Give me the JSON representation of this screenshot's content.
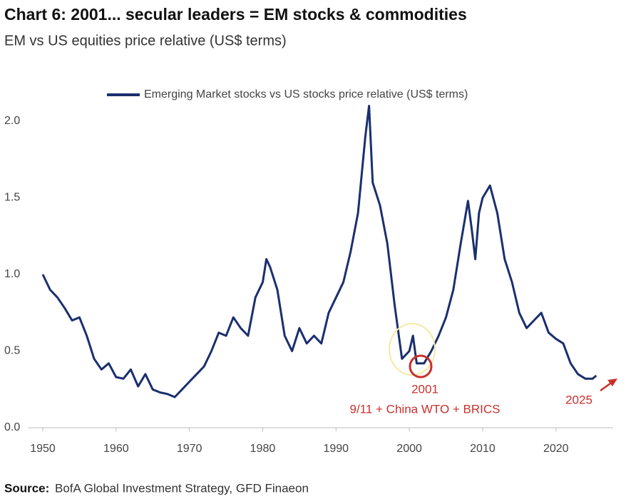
{
  "chart_data": {
    "type": "line",
    "title": "Chart 6: 2001... secular leaders = EM stocks & commodities",
    "subtitle": "EM vs US equities price relative (US$ terms)",
    "source_label": "Source:",
    "source_text": "BofA Global Investment Strategy, GFD Finaeon",
    "legend": "top",
    "annotations": [
      "2001",
      "9/11 + China WTO + BRICS",
      "2025"
    ],
    "x": [
      1950,
      1951,
      1952,
      1953,
      1954,
      1955,
      1956,
      1957,
      1958,
      1959,
      1960,
      1961,
      1962,
      1963,
      1964,
      1965,
      1966,
      1967,
      1968,
      1969,
      1970,
      1971,
      1972,
      1973,
      1974,
      1975,
      1976,
      1977,
      1978,
      1979,
      1980,
      1980.5,
      1981,
      1982,
      1983,
      1984,
      1985,
      1986,
      1987,
      1988,
      1989,
      1990,
      1991,
      1992,
      1993,
      1994,
      1994.5,
      1995,
      1996,
      1997,
      1998,
      1999,
      2000,
      2000.5,
      2001,
      2002,
      2003,
      2004,
      2005,
      2006,
      2007,
      2008,
      2008.5,
      2009,
      2009.5,
      2010,
      2011,
      2012,
      2013,
      2014,
      2015,
      2016,
      2017,
      2018,
      2019,
      2020,
      2021,
      2022,
      2023,
      2024,
      2025,
      2025.5
    ],
    "series": [
      {
        "name": "Emerging Market stocks vs US stocks price relative (US$ terms)",
        "color": "#1a2f6e",
        "values": [
          1.0,
          0.9,
          0.85,
          0.78,
          0.7,
          0.72,
          0.6,
          0.45,
          0.38,
          0.42,
          0.33,
          0.32,
          0.38,
          0.27,
          0.35,
          0.25,
          0.23,
          0.22,
          0.2,
          0.25,
          0.3,
          0.35,
          0.4,
          0.5,
          0.62,
          0.6,
          0.72,
          0.65,
          0.6,
          0.85,
          0.95,
          1.1,
          1.05,
          0.9,
          0.6,
          0.5,
          0.65,
          0.55,
          0.6,
          0.55,
          0.75,
          0.85,
          0.95,
          1.15,
          1.4,
          1.9,
          2.1,
          1.6,
          1.45,
          1.2,
          0.8,
          0.45,
          0.5,
          0.6,
          0.42,
          0.42,
          0.5,
          0.6,
          0.72,
          0.9,
          1.2,
          1.48,
          1.3,
          1.1,
          1.4,
          1.5,
          1.58,
          1.4,
          1.1,
          0.95,
          0.75,
          0.65,
          0.7,
          0.75,
          0.62,
          0.58,
          0.55,
          0.42,
          0.35,
          0.32,
          0.32,
          0.34
        ]
      }
    ],
    "xlim": [
      1950,
      2028
    ],
    "xticks": [
      1950,
      1960,
      1970,
      1980,
      1990,
      2000,
      2010,
      2020
    ],
    "ylim": [
      0,
      2.2
    ],
    "yticks": [
      {
        "value": 0,
        "label": "0.0"
      },
      0.5,
      {
        "value": 1,
        "label": "1.0"
      },
      1.5,
      {
        "value": 2,
        "label": "2.0"
      }
    ]
  }
}
